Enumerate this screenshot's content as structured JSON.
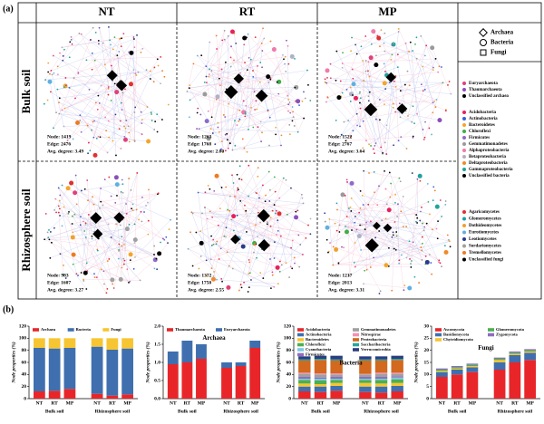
{
  "panel_labels": [
    "(a)",
    "(b)"
  ],
  "network": {
    "columns": [
      "NT",
      "RT",
      "MP"
    ],
    "rows": [
      "Bulk soil",
      "Rhizosphere soil"
    ],
    "stats": [
      [
        {
          "node": "Node: 1419",
          "edge": "Edge: 2476",
          "degree": "Avg. degree: 3.49"
        },
        {
          "node": "Node: 1263",
          "edge": "Edge: 1768",
          "degree": "Avg. degree: 2.80"
        },
        {
          "node": "Node: 1522",
          "edge": "Edge: 2767",
          "degree": "Avg. degree: 3.64"
        }
      ],
      [
        {
          "node": "Node: 983",
          "edge": "Edge: 1607",
          "degree": "Avg. degree: 3.27"
        },
        {
          "node": "Node: 1372",
          "edge": "Edge: 1750",
          "degree": "Avg. degree: 2.55"
        },
        {
          "node": "Node: 1217",
          "edge": "Edge: 2013",
          "degree": "Avg. degree: 3.31"
        }
      ]
    ],
    "legend": {
      "kingdoms": [
        "Archaea",
        "Bacteria",
        "Fungi"
      ],
      "archaea": [
        {
          "name": "Euryarchaeota",
          "color": "#e0407a"
        },
        {
          "name": "Thaumarchaeota",
          "color": "#8a4fb8"
        },
        {
          "name": "Unclassified archaea",
          "color": "#000000"
        }
      ],
      "bacteria": [
        {
          "name": "Acidobacteria",
          "color": "#e8205c"
        },
        {
          "name": "Actinobacteria",
          "color": "#3b5fd9"
        },
        {
          "name": "Bacteroidetes",
          "color": "#f2a62b"
        },
        {
          "name": "Chloroflexi",
          "color": "#3fae49"
        },
        {
          "name": "Firmicutes",
          "color": "#8c6bc8"
        },
        {
          "name": "Gemmatimonadetes",
          "color": "#9a9a9a"
        },
        {
          "name": "Alphaproteobacteria",
          "color": "#f07aa8"
        },
        {
          "name": "Betaproteobacteria",
          "color": "#b0b0c8"
        },
        {
          "name": "Deltaproteobacteria",
          "color": "#f08a2c"
        },
        {
          "name": "Gammaproteobacteria",
          "color": "#1fa59a"
        },
        {
          "name": "Unclassified bacteria",
          "color": "#000000"
        }
      ],
      "fungi": [
        {
          "name": "Agaricomycetes",
          "color": "#e03030"
        },
        {
          "name": "Glomeromycetes",
          "color": "#20a0a0"
        },
        {
          "name": "Dothideomycetes",
          "color": "#f0a030"
        },
        {
          "name": "Eurotiomycetes",
          "color": "#60b0e0"
        },
        {
          "name": "Leotiomycetes",
          "color": "#2a3a8a"
        },
        {
          "name": "Sordariomycetes",
          "color": "#a0a0a0"
        },
        {
          "name": "Tremellomycetes",
          "color": "#f07a20"
        },
        {
          "name": "Unclassified fungi",
          "color": "#000000"
        }
      ]
    }
  },
  "chart_data": [
    {
      "type": "bar",
      "stacked": true,
      "ylabel": "Node properties (%)",
      "categories": [
        "NT",
        "RT",
        "MP",
        "NT",
        "RT",
        "MP"
      ],
      "group_labels": [
        "Bulk soil",
        "Rhizosphere soil"
      ],
      "ylim": [
        0,
        120
      ],
      "yticks": [
        0,
        20,
        40,
        60,
        80,
        100,
        120
      ],
      "series": [
        {
          "name": "Archaea",
          "color": "#e8262a",
          "values": [
            12,
            13,
            16,
            8,
            5,
            7
          ]
        },
        {
          "name": "Bacteria",
          "color": "#3f6fae",
          "values": [
            72,
            70,
            68,
            78,
            76,
            76
          ]
        },
        {
          "name": "Fungi",
          "color": "#f7c531",
          "values": [
            16,
            17,
            16,
            14,
            19,
            17
          ]
        }
      ]
    },
    {
      "type": "bar",
      "stacked": true,
      "title": "Archaea",
      "ylabel": "Node properties (%)",
      "categories": [
        "NT",
        "RT",
        "MP",
        "NT",
        "RT",
        "MP"
      ],
      "group_labels": [
        "Bulk soil",
        "Rhizosphere soil"
      ],
      "ylim": [
        0,
        2
      ],
      "yticks": [
        {
          "value": 0,
          "label": "0.0"
        },
        {
          "value": 0.5,
          "label": "0.5"
        },
        {
          "value": 1,
          "label": "1.0"
        },
        {
          "value": 1.5,
          "label": "1.5"
        },
        {
          "value": 2,
          "label": "2.0"
        }
      ],
      "series": [
        {
          "name": "Thaumarchaeota",
          "color": "#e8262a",
          "values": [
            0.95,
            1.0,
            1.1,
            0.85,
            0.9,
            1.4
          ]
        },
        {
          "name": "Euryarchaeota",
          "color": "#3f6fae",
          "values": [
            0.35,
            0.6,
            0.4,
            0.15,
            0.1,
            0.2
          ]
        }
      ]
    },
    {
      "type": "bar",
      "stacked": true,
      "title": "Bacteria",
      "ylabel": "Node properties (%)",
      "categories": [
        "NT",
        "RT",
        "MP",
        "NT",
        "RT",
        "MP"
      ],
      "group_labels": [
        "Bulk soil",
        "Rhizosphere soil"
      ],
      "ylim": [
        0,
        120
      ],
      "yticks": [
        0,
        20,
        40,
        60,
        80,
        100,
        120
      ],
      "series": [
        {
          "name": "Acidobacteria",
          "color": "#e8262a",
          "values": [
            12,
            11,
            13,
            11,
            10,
            12
          ]
        },
        {
          "name": "Actinobacteria",
          "color": "#3f6fae",
          "values": [
            8,
            9,
            8,
            9,
            10,
            9
          ]
        },
        {
          "name": "Bacteroidetes",
          "color": "#f7c531",
          "values": [
            5,
            4,
            5,
            6,
            5,
            5
          ]
        },
        {
          "name": "Chloroflexi",
          "color": "#4caf50",
          "values": [
            6,
            6,
            5,
            5,
            6,
            6
          ]
        },
        {
          "name": "Cyanobacteria",
          "color": "#7ec8e3",
          "values": [
            2,
            3,
            2,
            2,
            2,
            3
          ]
        },
        {
          "name": "Firmicutes",
          "color": "#8e6cc0",
          "values": [
            3,
            2,
            3,
            3,
            3,
            2
          ]
        },
        {
          "name": "Gemmatimonadetes",
          "color": "#a0a0a0",
          "values": [
            5,
            5,
            4,
            4,
            5,
            4
          ]
        },
        {
          "name": "Nitrospirae",
          "color": "#f48fb1",
          "values": [
            2,
            2,
            2,
            1,
            2,
            2
          ]
        },
        {
          "name": "Proteobacteria",
          "color": "#d2691e",
          "values": [
            20,
            22,
            21,
            22,
            20,
            21
          ]
        },
        {
          "name": "Saccharibacteria",
          "color": "#26a69a",
          "values": [
            2,
            2,
            2,
            2,
            2,
            2
          ]
        },
        {
          "name": "Verrucomicrobia",
          "color": "#2c3e80",
          "values": [
            5,
            5,
            6,
            5,
            5,
            5
          ]
        }
      ]
    },
    {
      "type": "bar",
      "stacked": true,
      "title": "Fungi",
      "ylabel": "Node properties (%)",
      "categories": [
        "NT",
        "RT",
        "MP",
        "NT",
        "RT",
        "MP"
      ],
      "group_labels": [
        "Bulk soil",
        "Rhizosphere soil"
      ],
      "ylim": [
        0,
        30
      ],
      "yticks": [
        0,
        5,
        10,
        15,
        20,
        25,
        30
      ],
      "series": [
        {
          "name": "Ascomycota",
          "color": "#e8262a",
          "values": [
            9,
            10,
            11,
            12,
            15,
            16
          ]
        },
        {
          "name": "Basidiomycota",
          "color": "#3f6fae",
          "values": [
            2,
            2,
            2,
            3,
            3,
            3
          ]
        },
        {
          "name": "Chytridiomycota",
          "color": "#f7c531",
          "values": [
            0.5,
            0.5,
            0.5,
            1,
            0.5,
            0.5
          ]
        },
        {
          "name": "Glomeromycota",
          "color": "#4caf50",
          "values": [
            0.5,
            0.5,
            0.5,
            0.5,
            0.5,
            0.5
          ]
        },
        {
          "name": "Zygomycota",
          "color": "#8e6cc0",
          "values": [
            0.5,
            0.5,
            0.5,
            0.5,
            0.5,
            0.5
          ]
        }
      ]
    }
  ]
}
